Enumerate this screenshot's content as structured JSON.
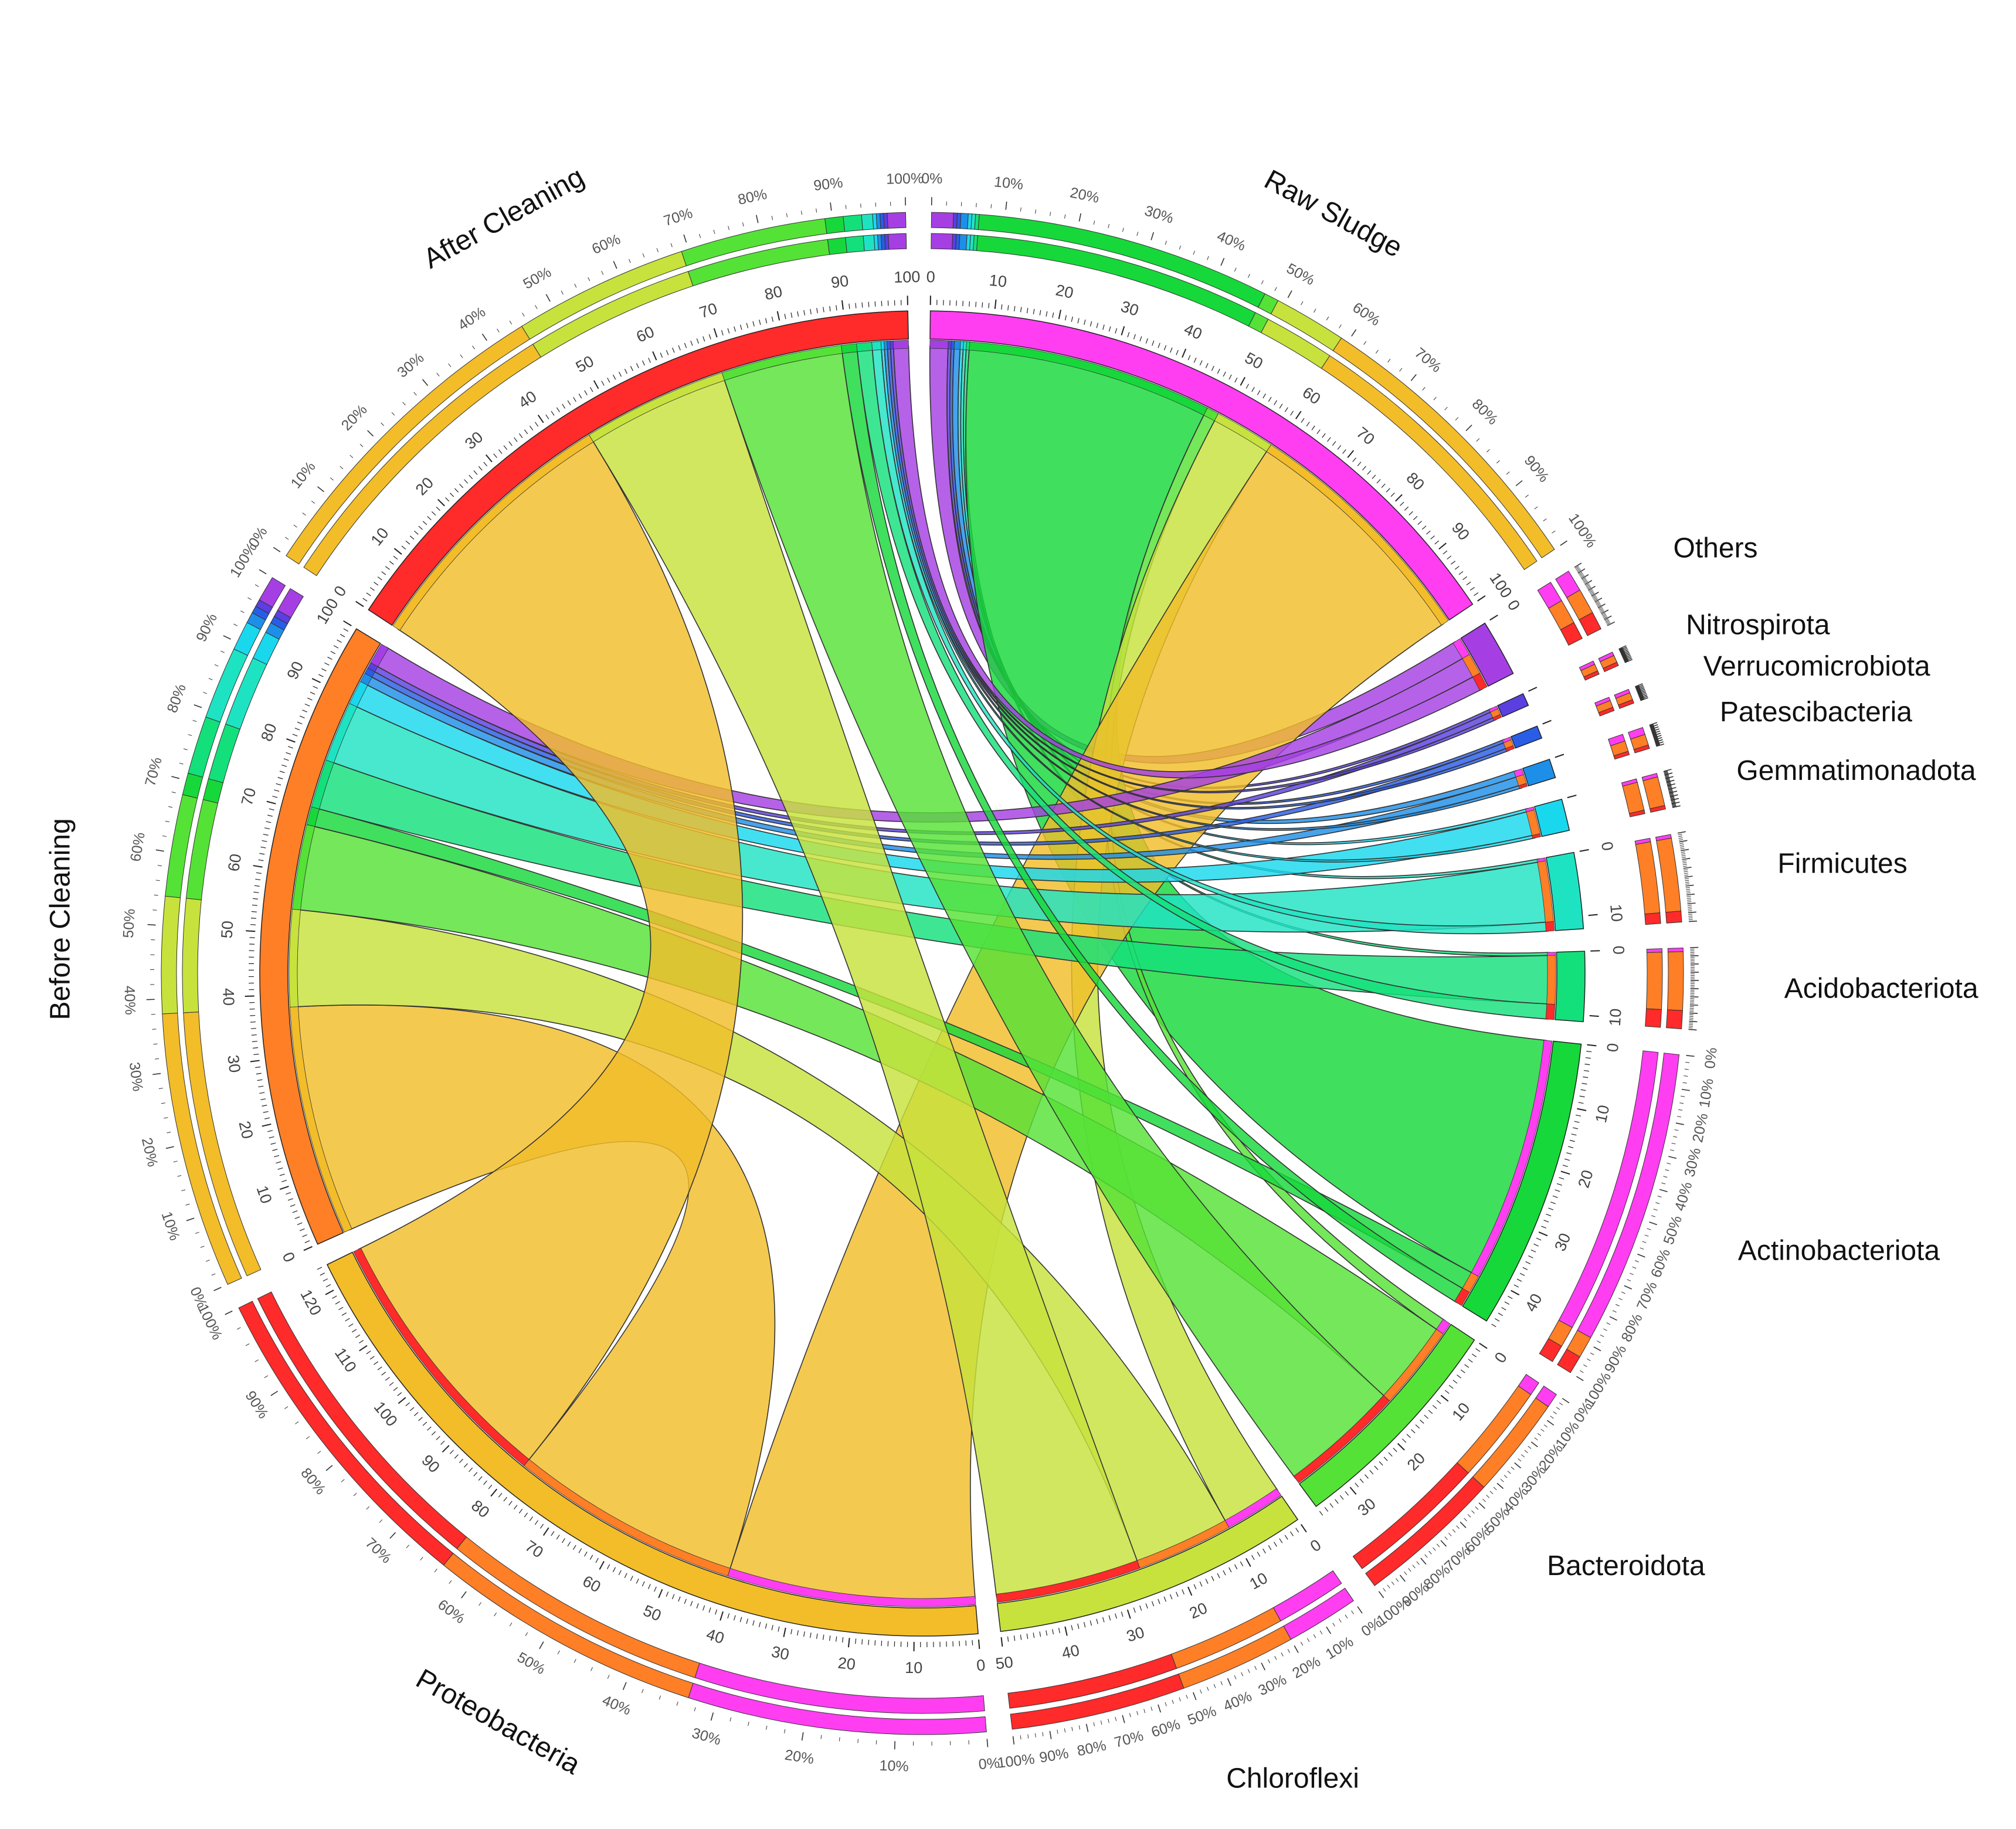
{
  "chart_data": {
    "type": "chord",
    "title": "",
    "samples": [
      "Raw Sludge",
      "Before Cleaning",
      "After Cleaning"
    ],
    "phyla": [
      "Proteobacteria",
      "Chloroflexi",
      "Bacteroidota",
      "Actinobacteriota",
      "Acidobacteriota",
      "Firmicutes",
      "Gemmatimonadota",
      "Patescibacteria",
      "Verrucomicrobiota",
      "Nitrospirota",
      "Others"
    ],
    "sample_colors": {
      "Raw Sludge": "#ff3ef2",
      "Before Cleaning": "#ff7f27",
      "After Cleaning": "#ff2a2a"
    },
    "phylum_colors": {
      "Proteobacteria": "#f2bd29",
      "Chloroflexi": "#c7e23c",
      "Bacteroidota": "#55e236",
      "Actinobacteriota": "#17d83a",
      "Acidobacteriota": "#13e07b",
      "Firmicutes": "#1ee3c3",
      "Gemmatimonadota": "#19d8ee",
      "Patescibacteria": "#1e8fe8",
      "Verrucomicrobiota": "#2a5de6",
      "Nitrospirota": "#5b3fe0",
      "Others": "#a53fe3"
    },
    "flows": {
      "Raw Sludge": {
        "Proteobacteria": 41,
        "Chloroflexi": 10,
        "Bacteroidota": 2,
        "Actinobacteriota": 40.5,
        "Acidobacteriota": 0.5,
        "Firmicutes": 0.5,
        "Gemmatimonadota": 0.5,
        "Patescibacteria": 1,
        "Verrucomicrobiota": 0.5,
        "Nitrospirota": 0.5,
        "Others": 3
      },
      "Before Cleaning": {
        "Proteobacteria": 38,
        "Chloroflexi": 16,
        "Bacteroidota": 14,
        "Actinobacteriota": 3,
        "Acidobacteriota": 8,
        "Firmicutes": 10,
        "Gemmatimonadota": 4,
        "Patescibacteria": 1.5,
        "Verrucomicrobiota": 1,
        "Nitrospirota": 1,
        "Others": 3.5
      },
      "After Cleaning": {
        "Proteobacteria": 45,
        "Chloroflexi": 24,
        "Bacteroidota": 20,
        "Actinobacteriota": 2.5,
        "Acidobacteriota": 2.5,
        "Firmicutes": 1.5,
        "Gemmatimonadota": 0.5,
        "Patescibacteria": 0.5,
        "Verrucomicrobiota": 0.5,
        "Nitrospirota": 0.5,
        "Others": 2.5
      }
    },
    "axis_ticks": [
      0,
      10,
      20,
      30,
      40,
      50,
      60,
      70,
      80,
      90,
      100,
      110,
      120
    ],
    "percent_ticks": [
      "0%",
      "10%",
      "20%",
      "30%",
      "40%",
      "50%",
      "60%",
      "70%",
      "80%",
      "90%",
      "100%"
    ]
  }
}
